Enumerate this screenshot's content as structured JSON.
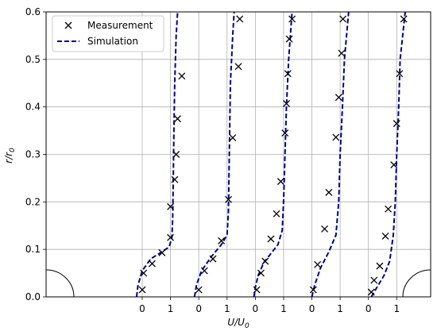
{
  "chart_data": {
    "type": "scatter",
    "xlabel": "U/U",
    "xlabel_sub": "0",
    "ylabel": "r/r",
    "ylabel_sub": "0",
    "ylim": [
      0,
      0.6
    ],
    "yticks": [
      0.0,
      0.1,
      0.2,
      0.3,
      0.4,
      0.5,
      0.6
    ],
    "ytick_labels": [
      "0.0",
      "0.1",
      "0.2",
      "0.3",
      "0.4",
      "0.5",
      "0.6"
    ],
    "xlim": [
      -3.4,
      10.2
    ],
    "x_panel_origins": [
      0,
      2,
      4,
      6,
      8
    ],
    "xtick_labels": [
      "0",
      "1",
      "0",
      "1",
      "0",
      "1",
      "0",
      "1",
      "0",
      "1"
    ],
    "grid": true,
    "legend": {
      "placement": "top-left",
      "entries": [
        {
          "label": "Measurement",
          "marker": "x",
          "color": "#000000"
        },
        {
          "label": "Simulation",
          "style": "dashed",
          "color": "#00008b"
        }
      ]
    },
    "series": [
      {
        "name": "Measurement",
        "panels": [
          [
            [
              0.0,
              0.015
            ],
            [
              0.05,
              0.05
            ],
            [
              0.35,
              0.07
            ],
            [
              0.7,
              0.093
            ],
            [
              1.0,
              0.125
            ],
            [
              1.0,
              0.19
            ],
            [
              1.15,
              0.247
            ],
            [
              1.2,
              0.3
            ],
            [
              1.25,
              0.375
            ],
            [
              1.4,
              0.465
            ]
          ],
          [
            [
              0.0,
              0.015
            ],
            [
              0.2,
              0.055
            ],
            [
              0.5,
              0.08
            ],
            [
              0.8,
              0.118
            ],
            [
              1.05,
              0.205
            ],
            [
              1.2,
              0.335
            ],
            [
              1.4,
              0.485
            ],
            [
              1.45,
              0.585
            ]
          ],
          [
            [
              0.05,
              0.015
            ],
            [
              0.2,
              0.05
            ],
            [
              0.35,
              0.075
            ],
            [
              0.55,
              0.122
            ],
            [
              0.75,
              0.175
            ],
            [
              0.9,
              0.243
            ],
            [
              1.05,
              0.345
            ],
            [
              1.1,
              0.407
            ],
            [
              1.15,
              0.47
            ],
            [
              1.2,
              0.543
            ],
            [
              1.3,
              0.585
            ]
          ],
          [
            [
              0.05,
              0.015
            ],
            [
              0.2,
              0.068
            ],
            [
              0.45,
              0.143
            ],
            [
              0.6,
              0.22
            ],
            [
              0.85,
              0.336
            ],
            [
              0.95,
              0.42
            ],
            [
              1.05,
              0.513
            ],
            [
              1.1,
              0.585
            ]
          ],
          [
            [
              0.1,
              0.01
            ],
            [
              0.2,
              0.035
            ],
            [
              0.4,
              0.065
            ],
            [
              0.6,
              0.128
            ],
            [
              0.7,
              0.185
            ],
            [
              0.9,
              0.278
            ],
            [
              1.0,
              0.365
            ],
            [
              1.1,
              0.47
            ],
            [
              1.25,
              0.585
            ]
          ]
        ]
      },
      {
        "name": "Simulation",
        "panels": [
          [
            [
              -0.2,
              0.0
            ],
            [
              -0.15,
              0.025
            ],
            [
              0.0,
              0.055
            ],
            [
              0.3,
              0.08
            ],
            [
              0.7,
              0.095
            ],
            [
              0.95,
              0.105
            ],
            [
              1.05,
              0.125
            ],
            [
              1.08,
              0.17
            ],
            [
              1.1,
              0.25
            ],
            [
              1.12,
              0.35
            ],
            [
              1.15,
              0.45
            ],
            [
              1.2,
              0.55
            ],
            [
              1.25,
              0.6
            ]
          ],
          [
            [
              -0.15,
              0.0
            ],
            [
              -0.08,
              0.025
            ],
            [
              0.1,
              0.055
            ],
            [
              0.45,
              0.085
            ],
            [
              0.8,
              0.11
            ],
            [
              1.0,
              0.13
            ],
            [
              1.05,
              0.18
            ],
            [
              1.08,
              0.3
            ],
            [
              1.12,
              0.45
            ],
            [
              1.2,
              0.55
            ],
            [
              1.25,
              0.6
            ]
          ],
          [
            [
              -0.05,
              0.0
            ],
            [
              0.0,
              0.02
            ],
            [
              0.1,
              0.045
            ],
            [
              0.3,
              0.072
            ],
            [
              0.6,
              0.095
            ],
            [
              0.8,
              0.11
            ],
            [
              0.95,
              0.14
            ],
            [
              1.0,
              0.2
            ],
            [
              1.05,
              0.3
            ],
            [
              1.1,
              0.4
            ],
            [
              1.18,
              0.5
            ],
            [
              1.3,
              0.6
            ]
          ],
          [
            [
              0.0,
              0.0
            ],
            [
              0.1,
              0.025
            ],
            [
              0.3,
              0.06
            ],
            [
              0.6,
              0.095
            ],
            [
              0.85,
              0.13
            ],
            [
              0.95,
              0.2
            ],
            [
              1.0,
              0.3
            ],
            [
              1.08,
              0.4
            ],
            [
              1.15,
              0.5
            ],
            [
              1.3,
              0.6
            ]
          ],
          [
            [
              0.1,
              0.0
            ],
            [
              0.3,
              0.02
            ],
            [
              0.55,
              0.045
            ],
            [
              0.75,
              0.075
            ],
            [
              0.88,
              0.13
            ],
            [
              0.95,
              0.2
            ],
            [
              1.0,
              0.3
            ],
            [
              1.07,
              0.4
            ],
            [
              1.12,
              0.5
            ],
            [
              1.3,
              0.6
            ]
          ]
        ]
      }
    ]
  }
}
